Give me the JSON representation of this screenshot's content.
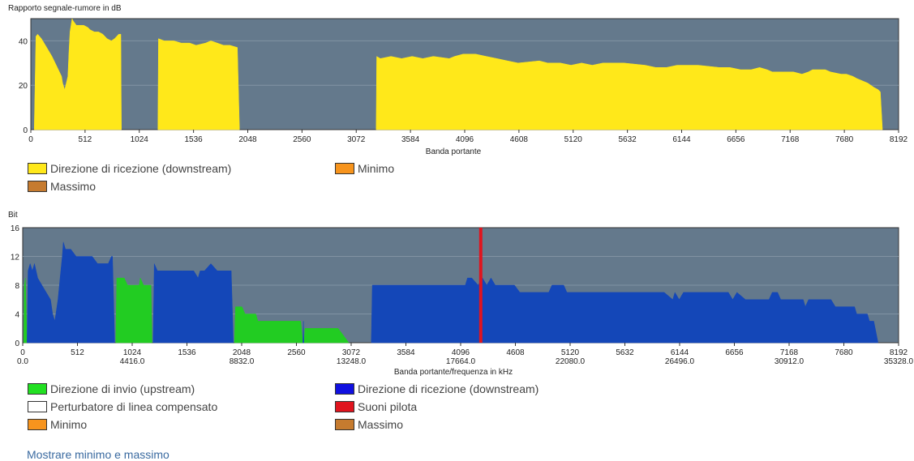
{
  "chart_data": [
    {
      "type": "area",
      "title": "Rapporto segnale-rumore in dB",
      "xlabel": "Banda portante",
      "ylabel": "",
      "xlim": [
        0,
        8192
      ],
      "ylim": [
        0,
        50
      ],
      "x_ticks": [
        0,
        512,
        1024,
        1536,
        2048,
        2560,
        3072,
        3584,
        4096,
        4608,
        5120,
        5632,
        6144,
        6656,
        7168,
        7680,
        8192
      ],
      "y_ticks": [
        0,
        20,
        40
      ],
      "grid": true,
      "series": [
        {
          "name": "Direzione di ricezione (downstream)",
          "color": "#ffe81a",
          "segments": [
            [
              [
                32,
                0
              ],
              [
                48,
                42
              ],
              [
                64,
                43
              ],
              [
                100,
                41
              ],
              [
                150,
                37
              ],
              [
                200,
                33
              ],
              [
                250,
                28
              ],
              [
                290,
                24
              ],
              [
                300,
                21
              ],
              [
                320,
                18
              ],
              [
                340,
                22
              ],
              [
                350,
                24
              ],
              [
                360,
                35
              ],
              [
                370,
                44
              ],
              [
                380,
                47
              ],
              [
                390,
                50
              ],
              [
                400,
                49
              ],
              [
                430,
                47
              ],
              [
                500,
                47
              ],
              [
                540,
                46
              ],
              [
                560,
                45
              ],
              [
                600,
                44
              ],
              [
                640,
                44
              ],
              [
                680,
                43
              ],
              [
                700,
                42
              ],
              [
                720,
                41
              ],
              [
                760,
                40
              ],
              [
                790,
                41
              ],
              [
                830,
                43
              ],
              [
                850,
                43
              ],
              [
                855,
                0
              ]
            ],
            [
              [
                1200,
                0
              ],
              [
                1205,
                41
              ],
              [
                1260,
                40
              ],
              [
                1350,
                40
              ],
              [
                1420,
                39
              ],
              [
                1500,
                39
              ],
              [
                1560,
                38
              ],
              [
                1650,
                39
              ],
              [
                1700,
                40
              ],
              [
                1760,
                39
              ],
              [
                1820,
                38
              ],
              [
                1880,
                38
              ],
              [
                1950,
                37
              ],
              [
                1970,
                0
              ]
            ],
            [
              [
                3260,
                0
              ],
              [
                3265,
                33
              ],
              [
                3300,
                32
              ],
              [
                3400,
                33
              ],
              [
                3500,
                32
              ],
              [
                3600,
                33
              ],
              [
                3700,
                32
              ],
              [
                3800,
                33
              ],
              [
                3950,
                32
              ],
              [
                4000,
                33
              ],
              [
                4080,
                34
              ],
              [
                4200,
                34
              ],
              [
                4300,
                33
              ],
              [
                4400,
                32
              ],
              [
                4500,
                31
              ],
              [
                4600,
                30
              ],
              [
                4800,
                31
              ],
              [
                4880,
                30
              ],
              [
                5000,
                30
              ],
              [
                5100,
                29
              ],
              [
                5200,
                30
              ],
              [
                5300,
                29
              ],
              [
                5400,
                30
              ],
              [
                5600,
                30
              ],
              [
                5800,
                29
              ],
              [
                5900,
                28
              ],
              [
                6000,
                28
              ],
              [
                6100,
                29
              ],
              [
                6300,
                29
              ],
              [
                6500,
                28
              ],
              [
                6600,
                28
              ],
              [
                6700,
                27
              ],
              [
                6800,
                27
              ],
              [
                6880,
                28
              ],
              [
                6950,
                27
              ],
              [
                7000,
                26
              ],
              [
                7100,
                26
              ],
              [
                7200,
                26
              ],
              [
                7280,
                25
              ],
              [
                7340,
                26
              ],
              [
                7380,
                27
              ],
              [
                7500,
                27
              ],
              [
                7550,
                26
              ],
              [
                7650,
                25
              ],
              [
                7700,
                25
              ],
              [
                7760,
                24
              ],
              [
                7800,
                23
              ],
              [
                7850,
                22
              ],
              [
                7900,
                21
              ],
              [
                7960,
                19
              ],
              [
                8000,
                18
              ],
              [
                8020,
                17
              ],
              [
                8040,
                0
              ]
            ]
          ]
        }
      ]
    },
    {
      "type": "area",
      "title": "Bit",
      "xlabel": "Banda portante/frequenza in kHz",
      "ylabel": "",
      "xlim": [
        0,
        8192
      ],
      "ylim": [
        0,
        16
      ],
      "x_ticks": [
        0,
        512,
        1024,
        1536,
        2048,
        2560,
        3072,
        3584,
        4096,
        4608,
        5120,
        5632,
        6144,
        6656,
        7168,
        7680,
        8192
      ],
      "x_ticks_khz": [
        "0.0",
        "4416.0",
        "8832.0",
        "13248.0",
        "17664.0",
        "22080.0",
        "26496.0",
        "30912.0",
        "35328.0"
      ],
      "y_ticks": [
        0,
        4,
        8,
        12,
        16
      ],
      "grid": true,
      "pilot_tone": 4284,
      "series": [
        {
          "name": "Direzione di invio (upstream)",
          "color": "#22cc22",
          "segments": [
            [
              [
                10,
                0
              ],
              [
                15,
                8
              ],
              [
                25,
                9
              ],
              [
                40,
                0
              ]
            ],
            [
              [
                870,
                0
              ],
              [
                880,
                9
              ],
              [
                950,
                9
              ],
              [
                980,
                8
              ],
              [
                1090,
                8
              ],
              [
                1100,
                9
              ],
              [
                1130,
                8
              ],
              [
                1200,
                8
              ],
              [
                1210,
                0
              ]
            ],
            [
              [
                1980,
                0
              ],
              [
                1990,
                5
              ],
              [
                2050,
                5
              ],
              [
                2080,
                4
              ],
              [
                2180,
                4
              ],
              [
                2200,
                3
              ],
              [
                2400,
                3
              ],
              [
                2600,
                3
              ],
              [
                2620,
                0
              ]
            ],
            [
              [
                2630,
                0
              ],
              [
                2640,
                2
              ],
              [
                2950,
                2
              ],
              [
                3000,
                1
              ],
              [
                3050,
                0
              ]
            ]
          ]
        },
        {
          "name": "Direzione di ricezione (downstream)",
          "color": "#1447b8",
          "segments": [
            [
              [
                40,
                0
              ],
              [
                50,
                10
              ],
              [
                70,
                11
              ],
              [
                90,
                10
              ],
              [
                110,
                11
              ],
              [
                140,
                9
              ],
              [
                180,
                8
              ],
              [
                220,
                7
              ],
              [
                260,
                6
              ],
              [
                280,
                4
              ],
              [
                300,
                3
              ],
              [
                310,
                4
              ],
              [
                330,
                6
              ],
              [
                350,
                9
              ],
              [
                370,
                12
              ],
              [
                380,
                14
              ],
              [
                400,
                13
              ],
              [
                450,
                13
              ],
              [
                500,
                12
              ],
              [
                560,
                12
              ],
              [
                650,
                12
              ],
              [
                700,
                11
              ],
              [
                800,
                11
              ],
              [
                830,
                12
              ],
              [
                840,
                12
              ],
              [
                860,
                0
              ]
            ],
            [
              [
                1220,
                0
              ],
              [
                1230,
                11
              ],
              [
                1260,
                10
              ],
              [
                1500,
                10
              ],
              [
                1600,
                10
              ],
              [
                1640,
                9
              ],
              [
                1660,
                10
              ],
              [
                1700,
                10
              ],
              [
                1760,
                11
              ],
              [
                1820,
                10
              ],
              [
                1900,
                10
              ],
              [
                1950,
                10
              ],
              [
                1970,
                0
              ]
            ],
            [
              [
                2620,
                0
              ],
              [
                2625,
                3
              ],
              [
                2630,
                0
              ]
            ],
            [
              [
                3260,
                0
              ],
              [
                3270,
                8
              ],
              [
                4140,
                8
              ],
              [
                4160,
                9
              ],
              [
                4200,
                9
              ],
              [
                4260,
                8
              ],
              [
                4300,
                9
              ],
              [
                4340,
                8
              ],
              [
                4380,
                9
              ],
              [
                4420,
                8
              ],
              [
                4600,
                8
              ],
              [
                4650,
                7
              ],
              [
                4920,
                7
              ],
              [
                4950,
                8
              ],
              [
                5060,
                8
              ],
              [
                5090,
                7
              ],
              [
                5600,
                7
              ],
              [
                6000,
                7
              ],
              [
                6080,
                6
              ],
              [
                6100,
                7
              ],
              [
                6140,
                6
              ],
              [
                6180,
                7
              ],
              [
                6600,
                7
              ],
              [
                6640,
                6
              ],
              [
                6680,
                7
              ],
              [
                6760,
                6
              ],
              [
                6980,
                6
              ],
              [
                7010,
                7
              ],
              [
                7060,
                7
              ],
              [
                7090,
                6
              ],
              [
                7300,
                6
              ],
              [
                7320,
                5
              ],
              [
                7350,
                6
              ],
              [
                7560,
                6
              ],
              [
                7600,
                5
              ],
              [
                7780,
                5
              ],
              [
                7800,
                4
              ],
              [
                7900,
                4
              ],
              [
                7920,
                3
              ],
              [
                7960,
                3
              ],
              [
                8000,
                0
              ]
            ]
          ]
        }
      ]
    }
  ],
  "legends": {
    "snr": {
      "downstream": "Direzione di ricezione (downstream)",
      "minimo": "Minimo",
      "massimo": "Massimo"
    },
    "bits": {
      "upstream": "Direzione di invio (upstream)",
      "downstream": "Direzione di ricezione (downstream)",
      "perturbatore": "Perturbatore di linea compensato",
      "pilota": "Suoni pilota",
      "minimo": "Minimo",
      "massimo": "Massimo"
    }
  },
  "colors": {
    "plot_bg": "#64798c",
    "downstream_snr": "#ffe81a",
    "upstream": "#22cc22",
    "downstream_bits": "#1447b8",
    "pilot": "#e0141e",
    "minimo": "#f7941d",
    "massimo": "#c67b2f",
    "perturbatore": "#ffffff"
  },
  "toggle_link": "Mostrare minimo e massimo"
}
